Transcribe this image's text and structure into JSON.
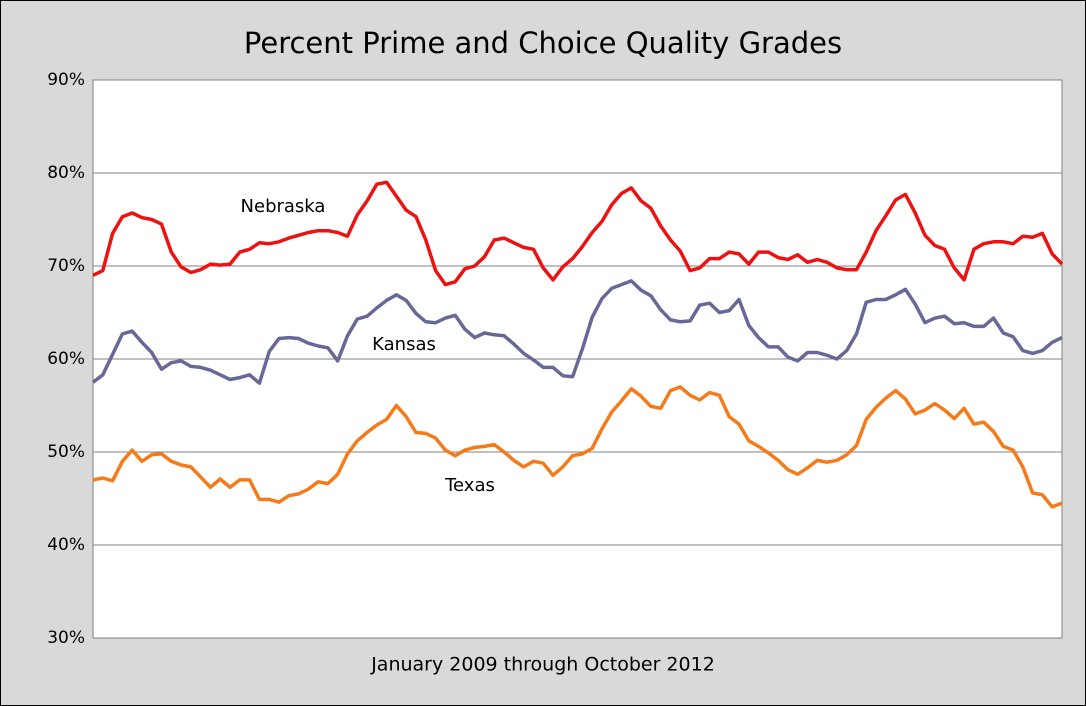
{
  "chart_data": {
    "type": "line",
    "title": "Percent Prime and Choice Quality Grades",
    "x_label": "January 2009 through October 2012",
    "categories": [
      null,
      null,
      null,
      null,
      null,
      null,
      null,
      null,
      null,
      null,
      null,
      null,
      null,
      null,
      null,
      null,
      null,
      null,
      null,
      null,
      null,
      null,
      null,
      null,
      null,
      null,
      null,
      null,
      null,
      null,
      null,
      null,
      null,
      null,
      null,
      null,
      null,
      null,
      null,
      null,
      null,
      null,
      null,
      null,
      null,
      null,
      null,
      null,
      null,
      null,
      null,
      null,
      null,
      null,
      null,
      null,
      null,
      null,
      null,
      null,
      null,
      null,
      null,
      null,
      null,
      null,
      null,
      null,
      null,
      null,
      null,
      null,
      null,
      null,
      null,
      null,
      null,
      null,
      null,
      null,
      null,
      null,
      null,
      null,
      null,
      null,
      null,
      null,
      null,
      null,
      null,
      null,
      null,
      null,
      null,
      null,
      null,
      null,
      null,
      null
    ],
    "series": [
      {
        "name": "Nebraska",
        "color": "#ee1111",
        "values": [
          69,
          69.5,
          73.5,
          75.3,
          75.7,
          75.2,
          75,
          74.5,
          71.5,
          69.9,
          69.3,
          69.6,
          70.2,
          70.1,
          70.2,
          71.5,
          71.8,
          72.5,
          72.4,
          72.6,
          73,
          73.3,
          73.6,
          73.8,
          73.8,
          73.6,
          73.2,
          75.5,
          77,
          78.8,
          79,
          77.5,
          76,
          75.3,
          72.8,
          69.5,
          68,
          68.3,
          69.7,
          70,
          71,
          72.8,
          73,
          72.5,
          72,
          71.8,
          69.8,
          68.5,
          69.9,
          70.8,
          72.1,
          73.6,
          74.8,
          76.6,
          77.8,
          78.4,
          77,
          76.2,
          74.3,
          72.8,
          71.6,
          69.5,
          69.8,
          70.8,
          70.8,
          71.5,
          71.3,
          70.2,
          71.5,
          71.5,
          70.9,
          70.7,
          71.2,
          70.4,
          70.7,
          70.4,
          69.8,
          69.6,
          69.6,
          71.5,
          73.8,
          75.4,
          77.1,
          77.7,
          75.7,
          73.3,
          72.2,
          71.8,
          69.8,
          68.5,
          71.8,
          72.4,
          72.6,
          72.6,
          72.4,
          73.2,
          73.1,
          73.5,
          71.3,
          70.2
        ]
      },
      {
        "name": "Kansas",
        "color": "#686898",
        "values": [
          57.5,
          58.3,
          60.5,
          62.7,
          63,
          61.8,
          60.7,
          58.9,
          59.6,
          59.8,
          59.2,
          59.1,
          58.8,
          58.3,
          57.8,
          58,
          58.3,
          57.4,
          60.8,
          62.2,
          62.3,
          62.2,
          61.7,
          61.4,
          61.2,
          59.8,
          62.5,
          64.3,
          64.6,
          65.5,
          66.3,
          66.9,
          66.3,
          64.9,
          64,
          63.9,
          64.4,
          64.7,
          63.2,
          62.3,
          62.8,
          62.6,
          62.5,
          61.6,
          60.6,
          59.9,
          59.1,
          59.1,
          58.2,
          58.1,
          61.1,
          64.5,
          66.5,
          67.6,
          68,
          68.4,
          67.4,
          66.8,
          65.3,
          64.2,
          64,
          64.1,
          65.8,
          66,
          65,
          65.2,
          66.4,
          63.6,
          62.3,
          61.3,
          61.3,
          60.2,
          59.8,
          60.7,
          60.7,
          60.4,
          60,
          60.9,
          62.7,
          66.1,
          66.4,
          66.4,
          66.9,
          67.5,
          65.9,
          63.9,
          64.4,
          64.6,
          63.8,
          63.9,
          63.5,
          63.5,
          64.4,
          62.8,
          62.4,
          60.9,
          60.6,
          60.9,
          61.8,
          62.3
        ]
      },
      {
        "name": "Texas",
        "color": "#f57a1a",
        "values": [
          47,
          47.2,
          46.9,
          49,
          50.2,
          49,
          49.7,
          49.8,
          49,
          48.6,
          48.4,
          47.3,
          46.2,
          47.1,
          46.2,
          47,
          47,
          44.9,
          44.9,
          44.6,
          45.3,
          45.5,
          46,
          46.8,
          46.6,
          47.6,
          49.8,
          51.2,
          52.1,
          52.9,
          53.5,
          55,
          53.8,
          52.1,
          52,
          51.5,
          50.2,
          49.6,
          50.2,
          50.5,
          50.6,
          50.8,
          50,
          49.1,
          48.4,
          49,
          48.8,
          47.5,
          48.4,
          49.6,
          49.8,
          50.4,
          52.5,
          54.3,
          55.5,
          56.8,
          56,
          54.9,
          54.7,
          56.6,
          57,
          56.1,
          55.6,
          56.4,
          56.1,
          53.8,
          53,
          51.2,
          50.6,
          49.9,
          49.1,
          48.1,
          47.6,
          48.3,
          49.1,
          48.9,
          49.1,
          49.7,
          50.7,
          53.5,
          54.8,
          55.8,
          56.6,
          55.7,
          54.1,
          54.5,
          55.2,
          54.5,
          53.6,
          54.7,
          53,
          53.2,
          52.2,
          50.6,
          50.2,
          48.4,
          45.6,
          45.4,
          44.1,
          44.5
        ]
      }
    ],
    "annotations": [
      "Nebraska",
      "Kansas",
      "Texas"
    ],
    "ylim": [
      30,
      90
    ],
    "yticks": [
      {
        "value": 30,
        "label": "30%"
      },
      {
        "value": 40,
        "label": "40%"
      },
      {
        "value": 50,
        "label": "50%"
      },
      {
        "value": 60,
        "label": "60%"
      },
      {
        "value": 70,
        "label": "70%"
      },
      {
        "value": 80,
        "label": "80%"
      },
      {
        "value": 90,
        "label": "90%"
      }
    ],
    "grid": true
  }
}
